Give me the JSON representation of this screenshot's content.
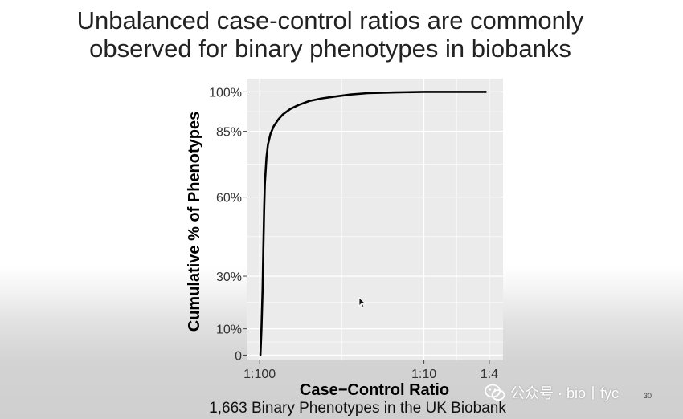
{
  "slide": {
    "title_line1": "Unbalanced case-control ratios are commonly",
    "title_line2": "observed for binary phenotypes in biobanks",
    "caption": "1,663 Binary Phenotypes in the UK Biobank",
    "page_number": "30"
  },
  "watermark": {
    "text": "公众号 · bio丨fyc",
    "icon": "wechat-icon"
  },
  "colors": {
    "panel_background": "#ebebeb",
    "gridline": "#ffffff",
    "curve": "#000000"
  },
  "chart_data": {
    "type": "line",
    "title": "",
    "xlabel": "Case−Control Ratio",
    "ylabel": "Cumulative % of Phenotypes",
    "x_scale": "log (control-to-case ratio)",
    "xlim": [
      120,
      3.3
    ],
    "ylim": [
      -2,
      105
    ],
    "xticks": [
      {
        "value": 100,
        "label": "1:100"
      },
      {
        "value": 10,
        "label": "1:10"
      },
      {
        "value": 4,
        "label": "1:4"
      }
    ],
    "yticks": [
      {
        "value": 0,
        "label": "0"
      },
      {
        "value": 10,
        "label": "10%"
      },
      {
        "value": 30,
        "label": "30%"
      },
      {
        "value": 60,
        "label": "60%"
      },
      {
        "value": 85,
        "label": "85%"
      },
      {
        "value": 100,
        "label": "100%"
      }
    ],
    "grid": true,
    "legend": "none",
    "series": [
      {
        "x": [
          99,
          97.5,
          96,
          95,
          94,
          93,
          91,
          89,
          86,
          82,
          77,
          72,
          65,
          58,
          50,
          42,
          35,
          28,
          22,
          15,
          10,
          6,
          4.2
        ],
        "y": [
          0,
          10,
          25,
          40,
          55,
          65,
          75,
          80,
          84,
          87,
          89.5,
          91.5,
          93.5,
          95,
          96.5,
          97.5,
          98.2,
          99,
          99.5,
          99.8,
          100,
          100,
          100
        ]
      }
    ]
  }
}
